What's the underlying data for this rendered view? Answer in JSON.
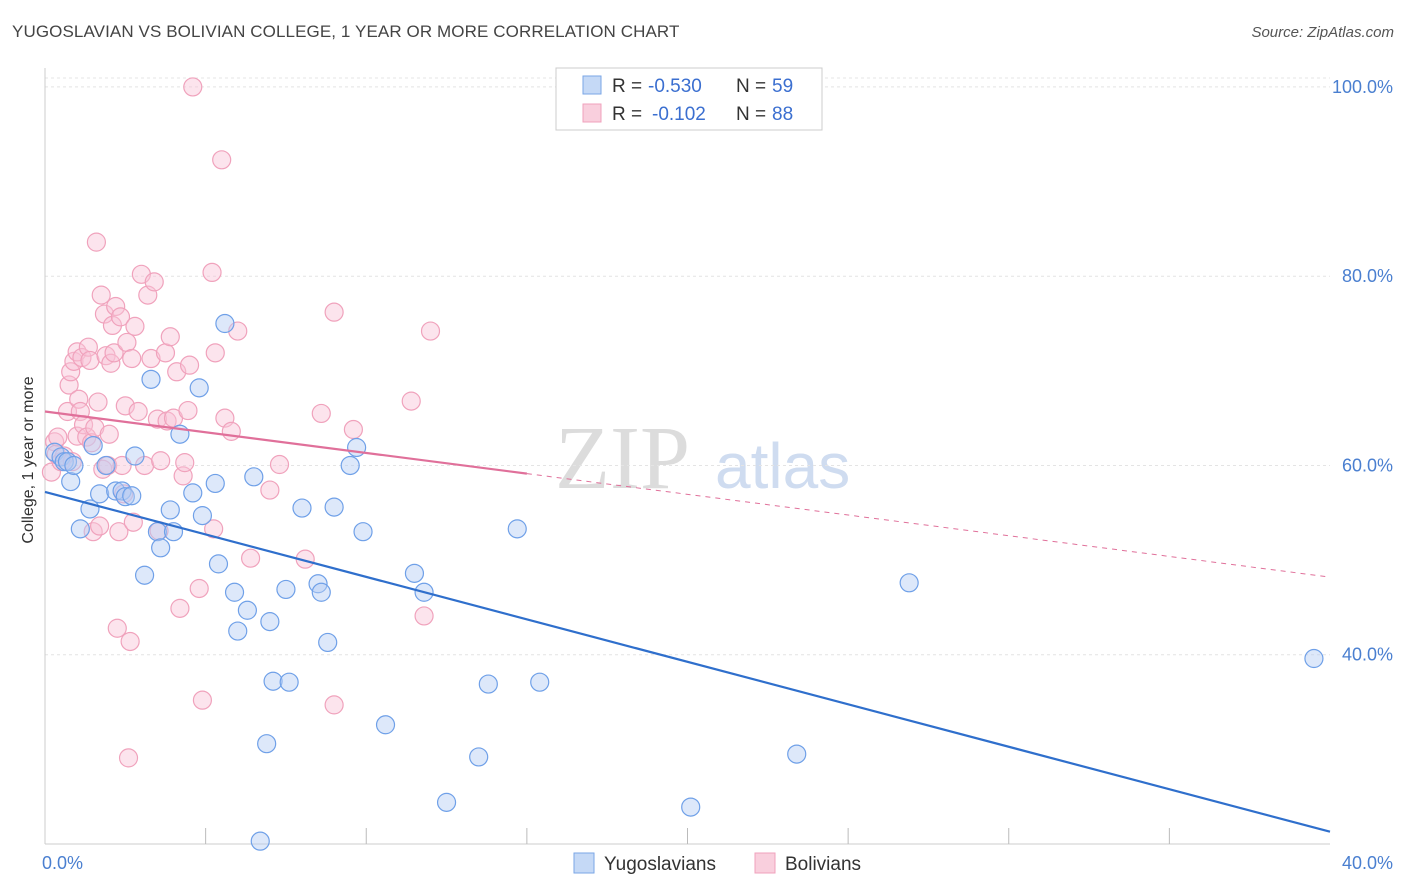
{
  "title": "YUGOSLAVIAN VS BOLIVIAN COLLEGE, 1 YEAR OR MORE CORRELATION CHART",
  "source": "Source: ZipAtlas.com",
  "watermark": {
    "zip": "ZIP",
    "atlas": "atlas"
  },
  "legend": {
    "rows": [
      {
        "r_label": "R =",
        "r_value": "-0.530",
        "n_label": "N =",
        "n_value": "59"
      },
      {
        "r_label": "R =",
        "r_value": "-0.102",
        "n_label": "N =",
        "n_value": "88"
      }
    ]
  },
  "chart_data": {
    "type": "scatter",
    "title": "YUGOSLAVIAN VS BOLIVIAN COLLEGE, 1 YEAR OR MORE CORRELATION CHART",
    "xlabel": "",
    "ylabel": "College, 1 year or more",
    "xlim": [
      0,
      40
    ],
    "ylim": [
      20,
      102
    ],
    "x_tick_labels": [
      "0.0%",
      "40.0%"
    ],
    "y_ticks": [
      100,
      80,
      60,
      40
    ],
    "y_tick_labels": [
      "100.0%",
      "80.0%",
      "60.0%",
      "40.0%"
    ],
    "grid": true,
    "series": [
      {
        "name": "Yugoslavians",
        "color": "#6fa0e8",
        "line_color": "#2f6fcc",
        "r": -0.53,
        "n": 59,
        "trend": {
          "x": [
            0,
            40
          ],
          "y": [
            57.2,
            21.3
          ]
        },
        "points": [
          [
            0.3,
            61.4
          ],
          [
            0.5,
            60.9
          ],
          [
            0.6,
            60.4
          ],
          [
            0.7,
            60.4
          ],
          [
            0.8,
            58.3
          ],
          [
            0.9,
            60.0
          ],
          [
            1.1,
            53.3
          ],
          [
            1.4,
            55.4
          ],
          [
            1.5,
            62.1
          ],
          [
            1.7,
            57.0
          ],
          [
            1.9,
            60.0
          ],
          [
            2.2,
            57.3
          ],
          [
            2.4,
            57.3
          ],
          [
            2.5,
            56.7
          ],
          [
            2.7,
            56.8
          ],
          [
            2.8,
            61.0
          ],
          [
            3.1,
            48.4
          ],
          [
            3.3,
            69.1
          ],
          [
            3.5,
            53.0
          ],
          [
            3.6,
            51.3
          ],
          [
            3.9,
            55.3
          ],
          [
            4.0,
            53.0
          ],
          [
            4.2,
            63.3
          ],
          [
            4.6,
            57.1
          ],
          [
            4.8,
            68.2
          ],
          [
            4.9,
            54.7
          ],
          [
            5.3,
            58.1
          ],
          [
            5.4,
            49.6
          ],
          [
            5.6,
            75.0
          ],
          [
            5.9,
            46.6
          ],
          [
            6.0,
            42.5
          ],
          [
            6.3,
            44.7
          ],
          [
            6.5,
            58.8
          ],
          [
            6.7,
            20.3
          ],
          [
            6.9,
            30.6
          ],
          [
            7.0,
            43.5
          ],
          [
            7.1,
            37.2
          ],
          [
            7.5,
            46.9
          ],
          [
            7.6,
            37.1
          ],
          [
            8.0,
            55.5
          ],
          [
            8.5,
            47.5
          ],
          [
            8.6,
            46.6
          ],
          [
            8.8,
            41.3
          ],
          [
            9.0,
            55.6
          ],
          [
            9.5,
            60.0
          ],
          [
            9.7,
            61.9
          ],
          [
            9.9,
            53.0
          ],
          [
            10.6,
            32.6
          ],
          [
            11.5,
            48.6
          ],
          [
            11.8,
            46.6
          ],
          [
            12.5,
            24.4
          ],
          [
            13.5,
            29.2
          ],
          [
            13.8,
            36.9
          ],
          [
            14.7,
            53.3
          ],
          [
            15.4,
            37.1
          ],
          [
            20.1,
            23.9
          ],
          [
            23.4,
            29.5
          ],
          [
            26.9,
            47.6
          ],
          [
            39.5,
            39.6
          ]
        ]
      },
      {
        "name": "Bolivians",
        "color": "#f2a3bd",
        "line_color": "#e0709a",
        "r": -0.102,
        "n": 88,
        "trend": {
          "x": [
            0,
            40
          ],
          "y": [
            65.7,
            48.2
          ]
        },
        "trend_solid_to_x": 15,
        "points": [
          [
            0.2,
            59.3
          ],
          [
            0.3,
            62.5
          ],
          [
            0.35,
            61.2
          ],
          [
            0.4,
            63.0
          ],
          [
            0.5,
            60.4
          ],
          [
            0.6,
            61.0
          ],
          [
            0.7,
            65.7
          ],
          [
            0.75,
            68.5
          ],
          [
            0.8,
            69.9
          ],
          [
            0.85,
            60.4
          ],
          [
            0.9,
            71.0
          ],
          [
            1.0,
            72.0
          ],
          [
            1.0,
            63.1
          ],
          [
            1.05,
            67.0
          ],
          [
            1.1,
            65.7
          ],
          [
            1.15,
            71.4
          ],
          [
            1.2,
            64.3
          ],
          [
            1.3,
            63.0
          ],
          [
            1.35,
            72.5
          ],
          [
            1.4,
            71.1
          ],
          [
            1.45,
            62.4
          ],
          [
            1.5,
            53.0
          ],
          [
            1.55,
            64.0
          ],
          [
            1.6,
            83.6
          ],
          [
            1.65,
            66.7
          ],
          [
            1.7,
            53.6
          ],
          [
            1.75,
            78.0
          ],
          [
            1.8,
            59.6
          ],
          [
            1.85,
            76.0
          ],
          [
            1.9,
            71.6
          ],
          [
            1.95,
            60.0
          ],
          [
            2.0,
            63.3
          ],
          [
            2.05,
            70.8
          ],
          [
            2.1,
            74.8
          ],
          [
            2.15,
            71.9
          ],
          [
            2.2,
            76.8
          ],
          [
            2.25,
            42.8
          ],
          [
            2.3,
            53.0
          ],
          [
            2.35,
            75.7
          ],
          [
            2.4,
            60.0
          ],
          [
            2.45,
            57.0
          ],
          [
            2.5,
            66.3
          ],
          [
            2.55,
            73.0
          ],
          [
            2.6,
            29.1
          ],
          [
            2.65,
            41.4
          ],
          [
            2.7,
            71.3
          ],
          [
            2.75,
            54.0
          ],
          [
            2.8,
            74.7
          ],
          [
            2.9,
            65.7
          ],
          [
            3.0,
            80.2
          ],
          [
            3.1,
            60.0
          ],
          [
            3.2,
            78.0
          ],
          [
            3.3,
            71.3
          ],
          [
            3.4,
            79.4
          ],
          [
            3.5,
            64.9
          ],
          [
            3.55,
            53.1
          ],
          [
            3.6,
            60.5
          ],
          [
            3.75,
            71.9
          ],
          [
            3.8,
            64.7
          ],
          [
            3.9,
            73.6
          ],
          [
            4.0,
            65.0
          ],
          [
            4.1,
            69.9
          ],
          [
            4.2,
            44.9
          ],
          [
            4.3,
            58.9
          ],
          [
            4.35,
            60.3
          ],
          [
            4.45,
            65.8
          ],
          [
            4.5,
            70.6
          ],
          [
            4.6,
            100.0
          ],
          [
            4.8,
            47.0
          ],
          [
            4.9,
            35.2
          ],
          [
            5.2,
            80.4
          ],
          [
            5.25,
            53.3
          ],
          [
            5.3,
            71.9
          ],
          [
            5.5,
            92.3
          ],
          [
            5.6,
            65.0
          ],
          [
            5.8,
            63.6
          ],
          [
            6.0,
            74.2
          ],
          [
            6.4,
            50.2
          ],
          [
            7.0,
            57.4
          ],
          [
            7.3,
            60.1
          ],
          [
            8.1,
            50.1
          ],
          [
            8.6,
            65.5
          ],
          [
            9.0,
            76.2
          ],
          [
            9.0,
            34.7
          ],
          [
            9.6,
            63.8
          ],
          [
            11.4,
            66.8
          ],
          [
            11.8,
            44.1
          ],
          [
            12.0,
            74.2
          ]
        ]
      }
    ]
  }
}
